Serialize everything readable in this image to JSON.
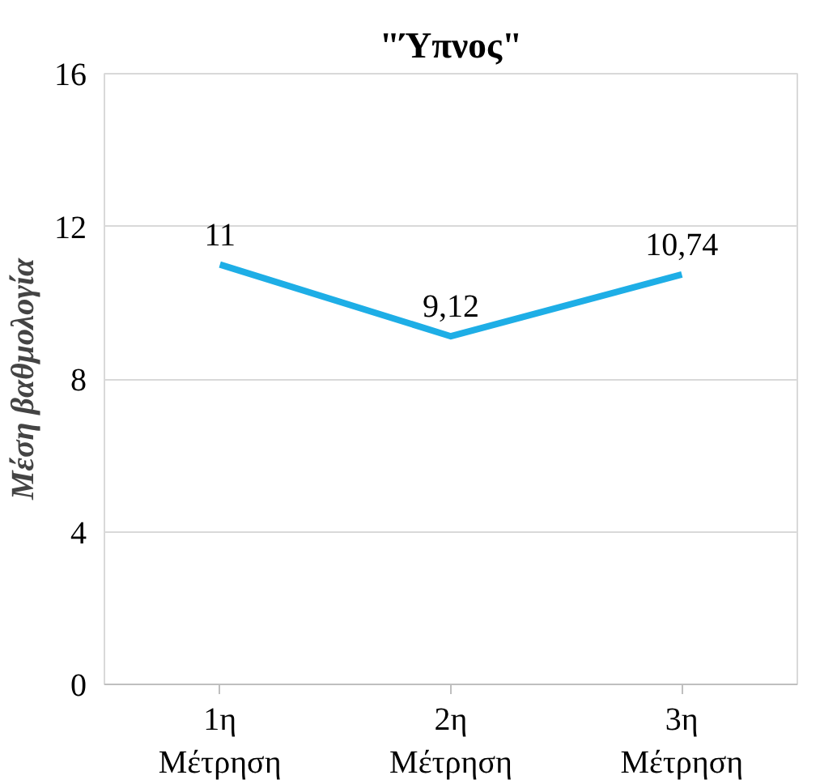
{
  "chart_data": {
    "type": "line",
    "title": "\"Ύπνος\"",
    "ylabel": "Μέση βαθμολογία",
    "categories": [
      "1η Μέτρηση",
      "2η Μέτρηση",
      "3η Μέτρηση"
    ],
    "series": [
      {
        "color": "#1eaee6",
        "values": [
          11,
          9.12,
          10.74
        ],
        "value_labels": [
          "11",
          "9,12",
          "10,74"
        ]
      }
    ],
    "ylim": [
      0,
      16
    ],
    "yticks": [
      0,
      4,
      8,
      12,
      16
    ],
    "grid": "y",
    "marker": "none",
    "line_style": "solid"
  }
}
